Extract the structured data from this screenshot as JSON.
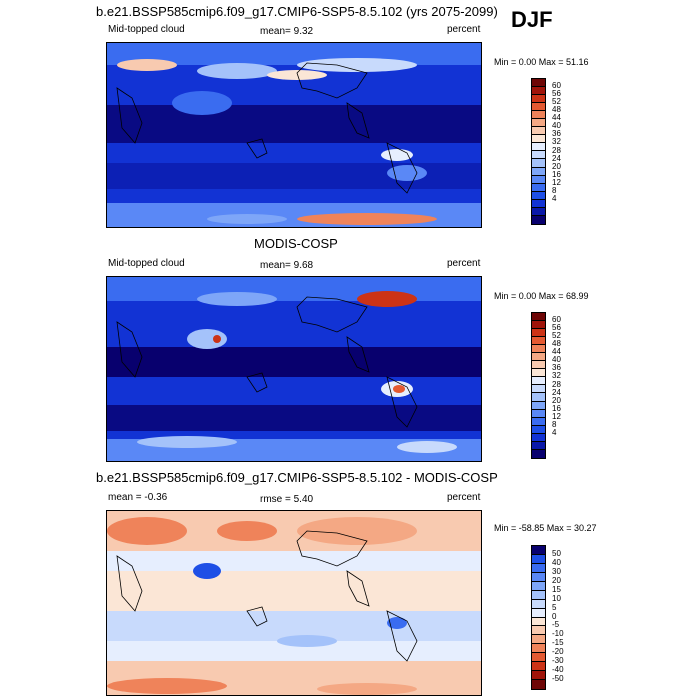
{
  "season": "DJF",
  "panels": [
    {
      "title": "b.e21.BSSP585cmip6.f09_g17.CMIP6-SSP5-8.5.102 (yrs 2075-2099)",
      "left_label": "Mid-topped cloud",
      "center_label": "mean=  9.32",
      "right_label": "percent",
      "minmax": "Min =   0.00 Max =  51.16",
      "colorbar_labels": [
        "60",
        "56",
        "52",
        "48",
        "44",
        "40",
        "36",
        "32",
        "28",
        "24",
        "20",
        "16",
        "12",
        "8",
        "4"
      ]
    },
    {
      "title": "MODIS-COSP",
      "left_label": "Mid-topped cloud",
      "center_label": "mean=   9.68",
      "right_label": "percent",
      "minmax": "Min =   0.00 Max =  68.99",
      "colorbar_labels": [
        "60",
        "56",
        "52",
        "48",
        "44",
        "40",
        "36",
        "32",
        "28",
        "24",
        "20",
        "16",
        "12",
        "8",
        "4"
      ]
    },
    {
      "title": "b.e21.BSSP585cmip6.f09_g17.CMIP6-SSP5-8.5.102 - MODIS-COSP",
      "left_label": "mean =  -0.36",
      "center_label": "rmse =   5.40",
      "right_label": "percent",
      "minmax": "Min = -58.85 Max =  30.27",
      "colorbar_labels": [
        "50",
        "40",
        "30",
        "20",
        "15",
        "10",
        "5",
        "0",
        "-5",
        "-10",
        "-15",
        "-20",
        "-30",
        "-40",
        "-50"
      ]
    }
  ],
  "colors": {
    "seq": [
      "#08006e",
      "#0a18a8",
      "#1233d4",
      "#1e4fe6",
      "#3a6cf0",
      "#5a88f6",
      "#7ea6f8",
      "#a4c2fa",
      "#c8dafc",
      "#e6eefe",
      "#fbe6d6",
      "#f8cab0",
      "#f4a884",
      "#ef835a",
      "#e45a32",
      "#cc3316",
      "#a0140a",
      "#6e0606"
    ],
    "div": [
      "#6e0606",
      "#a0140a",
      "#cc3316",
      "#e45a32",
      "#ef835a",
      "#f4a884",
      "#f8cab0",
      "#fbe6d6",
      "#e6eefe",
      "#c8dafc",
      "#a4c2fa",
      "#7ea6f8",
      "#5a88f6",
      "#3a6cf0",
      "#1e4fe6",
      "#08006e"
    ]
  }
}
